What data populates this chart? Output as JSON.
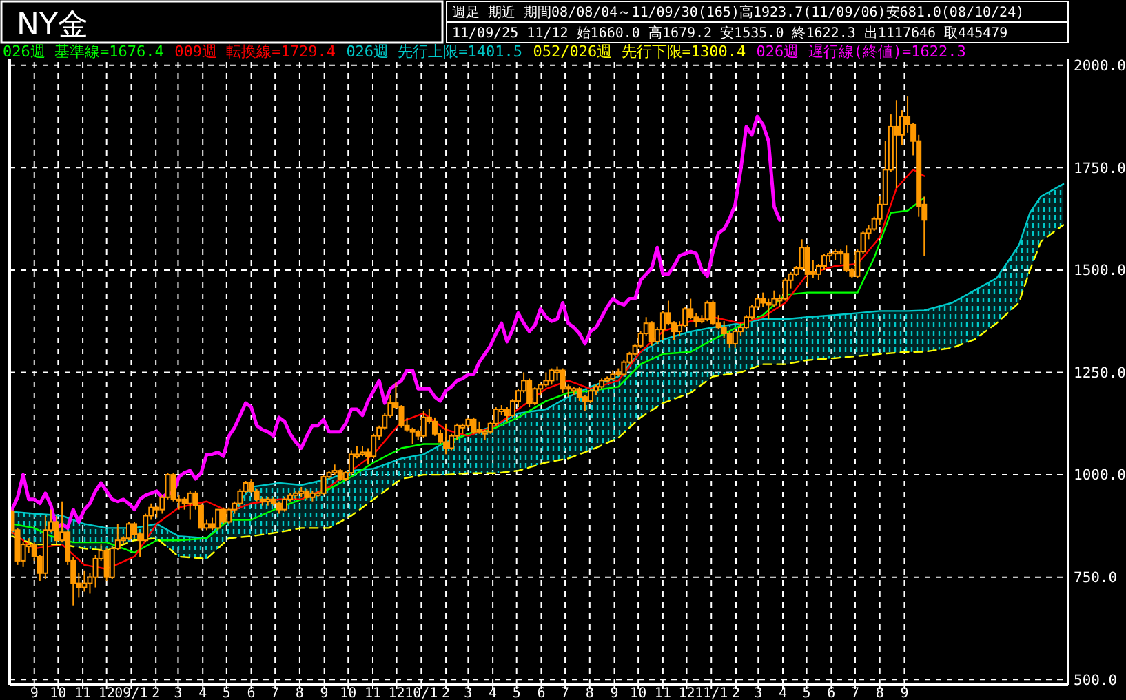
{
  "chart_data": {
    "type": "candlestick",
    "title": "NY金",
    "subtitle": "週足 期近 期間08/08/04～11/09/30(165)高1923.7(11/09/06)安681.0(08/10/24)",
    "annotations": [
      "11/09/25 11/12 始1660.0 高1679.2 安1535.0 終1622.3 出1117646 取445479"
    ],
    "color": "#ff9900",
    "grid": true,
    "legend": "top left",
    "xlim": [
      "2008-08-01",
      "2012-03-25"
    ],
    "xticks": [
      {
        "value": "2008-09-01",
        "label": "9"
      },
      {
        "value": "2008-10-01",
        "label": "10"
      },
      {
        "value": "2008-11-01",
        "label": "11"
      },
      {
        "value": "2008-12-01",
        "label": "12"
      },
      {
        "value": "2009-01-01",
        "label": "09/1"
      },
      {
        "value": "2009-02-01",
        "label": "2"
      },
      {
        "value": "2009-03-01",
        "label": "3"
      },
      {
        "value": "2009-04-01",
        "label": "4"
      },
      {
        "value": "2009-05-01",
        "label": "5"
      },
      {
        "value": "2009-06-01",
        "label": "6"
      },
      {
        "value": "2009-07-01",
        "label": "7"
      },
      {
        "value": "2009-08-01",
        "label": "8"
      },
      {
        "value": "2009-09-01",
        "label": "9"
      },
      {
        "value": "2009-10-01",
        "label": "10"
      },
      {
        "value": "2009-11-01",
        "label": "11"
      },
      {
        "value": "2009-12-01",
        "label": "12"
      },
      {
        "value": "2010-01-01",
        "label": "10/1"
      },
      {
        "value": "2010-02-01",
        "label": "2"
      },
      {
        "value": "2010-03-01",
        "label": "3"
      },
      {
        "value": "2010-04-01",
        "label": "4"
      },
      {
        "value": "2010-05-01",
        "label": "5"
      },
      {
        "value": "2010-06-01",
        "label": "6"
      },
      {
        "value": "2010-07-01",
        "label": "7"
      },
      {
        "value": "2010-08-01",
        "label": "8"
      },
      {
        "value": "2010-09-01",
        "label": "9"
      },
      {
        "value": "2010-10-01",
        "label": "10"
      },
      {
        "value": "2010-11-01",
        "label": "11"
      },
      {
        "value": "2010-12-01",
        "label": "12"
      },
      {
        "value": "2011-01-01",
        "label": "11/1"
      },
      {
        "value": "2011-02-01",
        "label": "2"
      },
      {
        "value": "2011-03-01",
        "label": "3"
      },
      {
        "value": "2011-04-01",
        "label": "4"
      },
      {
        "value": "2011-05-01",
        "label": "5"
      },
      {
        "value": "2011-06-01",
        "label": "6"
      },
      {
        "value": "2011-07-01",
        "label": "7"
      },
      {
        "value": "2011-08-01",
        "label": "8"
      },
      {
        "value": "2011-09-01",
        "label": "9"
      }
    ],
    "ylim": [
      487,
      2008
    ],
    "yticks": [
      {
        "value": 500,
        "label": "500.0"
      },
      {
        "value": 750,
        "label": "750.0"
      },
      {
        "value": 1000,
        "label": "1000.0"
      },
      {
        "value": 1250,
        "label": "1250.0"
      },
      {
        "value": 1500,
        "label": "1500.0"
      },
      {
        "value": 1750,
        "label": "1750.0"
      },
      {
        "value": 2000,
        "label": "2000.0"
      }
    ],
    "x": [
      "2008-08-04",
      "2008-08-11",
      "2008-08-18",
      "2008-08-25",
      "2008-09-01",
      "2008-09-08",
      "2008-09-15",
      "2008-09-22",
      "2008-09-29",
      "2008-10-06",
      "2008-10-13",
      "2008-10-20",
      "2008-10-27",
      "2008-11-03",
      "2008-11-10",
      "2008-11-17",
      "2008-11-24",
      "2008-12-01",
      "2008-12-08",
      "2008-12-15",
      "2008-12-22",
      "2008-12-29",
      "2009-01-05",
      "2009-01-12",
      "2009-01-19",
      "2009-01-26",
      "2009-02-02",
      "2009-02-09",
      "2009-02-16",
      "2009-02-23",
      "2009-03-02",
      "2009-03-09",
      "2009-03-16",
      "2009-03-23",
      "2009-03-30",
      "2009-04-06",
      "2009-04-13",
      "2009-04-20",
      "2009-04-27",
      "2009-05-04",
      "2009-05-11",
      "2009-05-18",
      "2009-05-25",
      "2009-06-01",
      "2009-06-08",
      "2009-06-15",
      "2009-06-22",
      "2009-06-29",
      "2009-07-06",
      "2009-07-13",
      "2009-07-20",
      "2009-07-27",
      "2009-08-03",
      "2009-08-10",
      "2009-08-17",
      "2009-08-24",
      "2009-08-31",
      "2009-09-07",
      "2009-09-14",
      "2009-09-21",
      "2009-09-28",
      "2009-10-05",
      "2009-10-12",
      "2009-10-19",
      "2009-10-26",
      "2009-11-02",
      "2009-11-09",
      "2009-11-16",
      "2009-11-23",
      "2009-11-30",
      "2009-12-07",
      "2009-12-14",
      "2009-12-21",
      "2009-12-28",
      "2010-01-04",
      "2010-01-11",
      "2010-01-18",
      "2010-01-25",
      "2010-02-01",
      "2010-02-08",
      "2010-02-15",
      "2010-02-22",
      "2010-03-01",
      "2010-03-08",
      "2010-03-15",
      "2010-03-22",
      "2010-03-29",
      "2010-04-05",
      "2010-04-12",
      "2010-04-19",
      "2010-04-26",
      "2010-05-03",
      "2010-05-10",
      "2010-05-17",
      "2010-05-24",
      "2010-05-31",
      "2010-06-07",
      "2010-06-14",
      "2010-06-21",
      "2010-06-28",
      "2010-07-05",
      "2010-07-12",
      "2010-07-19",
      "2010-07-26",
      "2010-08-02",
      "2010-08-09",
      "2010-08-16",
      "2010-08-23",
      "2010-08-30",
      "2010-09-06",
      "2010-09-13",
      "2010-09-20",
      "2010-09-27",
      "2010-10-04",
      "2010-10-11",
      "2010-10-18",
      "2010-10-25",
      "2010-11-01",
      "2010-11-08",
      "2010-11-15",
      "2010-11-22",
      "2010-11-29",
      "2010-12-06",
      "2010-12-13",
      "2010-12-20",
      "2010-12-27",
      "2011-01-03",
      "2011-01-10",
      "2011-01-17",
      "2011-01-24",
      "2011-01-31",
      "2011-02-07",
      "2011-02-14",
      "2011-02-21",
      "2011-02-28",
      "2011-03-07",
      "2011-03-14",
      "2011-03-21",
      "2011-03-28",
      "2011-04-04",
      "2011-04-11",
      "2011-04-18",
      "2011-04-25",
      "2011-05-02",
      "2011-05-09",
      "2011-05-16",
      "2011-05-23",
      "2011-05-30",
      "2011-06-06",
      "2011-06-13",
      "2011-06-20",
      "2011-06-27",
      "2011-07-04",
      "2011-07-11",
      "2011-07-18",
      "2011-07-25",
      "2011-08-01",
      "2011-08-08",
      "2011-08-15",
      "2011-08-22",
      "2011-08-29",
      "2011-09-05",
      "2011-09-12",
      "2011-09-19",
      "2011-09-26"
    ],
    "ohlc": [
      [
        910,
        915,
        855,
        865
      ],
      [
        865,
        870,
        780,
        790
      ],
      [
        790,
        835,
        775,
        830
      ],
      [
        825,
        845,
        810,
        830
      ],
      [
        830,
        835,
        790,
        800
      ],
      [
        800,
        805,
        740,
        760
      ],
      [
        760,
        900,
        745,
        865
      ],
      [
        865,
        915,
        860,
        885
      ],
      [
        885,
        900,
        830,
        840
      ],
      [
        840,
        935,
        835,
        860
      ],
      [
        860,
        865,
        780,
        790
      ],
      [
        790,
        800,
        681,
        735
      ],
      [
        735,
        760,
        700,
        725
      ],
      [
        725,
        765,
        715,
        735
      ],
      [
        735,
        760,
        710,
        750
      ],
      [
        750,
        805,
        725,
        795
      ],
      [
        795,
        830,
        790,
        815
      ],
      [
        815,
        820,
        740,
        750
      ],
      [
        750,
        825,
        745,
        820
      ],
      [
        820,
        880,
        815,
        840
      ],
      [
        840,
        850,
        830,
        845
      ],
      [
        845,
        885,
        840,
        880
      ],
      [
        880,
        885,
        845,
        855
      ],
      [
        855,
        860,
        800,
        840
      ],
      [
        840,
        905,
        835,
        900
      ],
      [
        900,
        930,
        890,
        920
      ],
      [
        920,
        925,
        895,
        915
      ],
      [
        915,
        950,
        905,
        945
      ],
      [
        945,
        1005,
        940,
        1000
      ],
      [
        1000,
        1005,
        935,
        940
      ],
      [
        940,
        950,
        915,
        940
      ],
      [
        940,
        945,
        915,
        930
      ],
      [
        930,
        960,
        890,
        955
      ],
      [
        955,
        960,
        915,
        925
      ],
      [
        925,
        930,
        865,
        870
      ],
      [
        870,
        890,
        865,
        880
      ],
      [
        880,
        895,
        865,
        870
      ],
      [
        870,
        915,
        865,
        915
      ],
      [
        915,
        920,
        880,
        885
      ],
      [
        885,
        920,
        880,
        915
      ],
      [
        915,
        935,
        905,
        930
      ],
      [
        930,
        965,
        925,
        960
      ],
      [
        960,
        985,
        955,
        980
      ],
      [
        980,
        990,
        955,
        960
      ],
      [
        960,
        965,
        935,
        940
      ],
      [
        940,
        945,
        925,
        935
      ],
      [
        935,
        945,
        925,
        940
      ],
      [
        940,
        945,
        925,
        930
      ],
      [
        930,
        935,
        905,
        915
      ],
      [
        915,
        945,
        910,
        940
      ],
      [
        940,
        955,
        935,
        950
      ],
      [
        950,
        960,
        940,
        955
      ],
      [
        955,
        970,
        945,
        960
      ],
      [
        960,
        965,
        940,
        945
      ],
      [
        945,
        960,
        935,
        955
      ],
      [
        950,
        960,
        945,
        955
      ],
      [
        955,
        1000,
        950,
        995
      ],
      [
        995,
        1010,
        990,
        1005
      ],
      [
        1005,
        1025,
        1000,
        1010
      ],
      [
        1010,
        1015,
        985,
        990
      ],
      [
        990,
        1010,
        985,
        1005
      ],
      [
        1005,
        1060,
        1000,
        1050
      ],
      [
        1045,
        1070,
        1040,
        1050
      ],
      [
        1050,
        1070,
        1045,
        1055
      ],
      [
        1055,
        1065,
        1025,
        1045
      ],
      [
        1045,
        1100,
        1040,
        1095
      ],
      [
        1095,
        1120,
        1085,
        1115
      ],
      [
        1115,
        1150,
        1110,
        1145
      ],
      [
        1145,
        1195,
        1140,
        1175
      ],
      [
        1175,
        1225,
        1160,
        1165
      ],
      [
        1165,
        1170,
        1115,
        1120
      ],
      [
        1120,
        1140,
        1105,
        1110
      ],
      [
        1110,
        1115,
        1075,
        1105
      ],
      [
        1105,
        1110,
        1085,
        1095
      ],
      [
        1095,
        1155,
        1090,
        1140
      ],
      [
        1140,
        1160,
        1125,
        1130
      ],
      [
        1130,
        1140,
        1095,
        1100
      ],
      [
        1100,
        1110,
        1075,
        1080
      ],
      [
        1080,
        1125,
        1050,
        1065
      ],
      [
        1065,
        1100,
        1060,
        1095
      ],
      [
        1095,
        1125,
        1085,
        1120
      ],
      [
        1115,
        1125,
        1100,
        1120
      ],
      [
        1120,
        1140,
        1115,
        1135
      ],
      [
        1135,
        1140,
        1100,
        1105
      ],
      [
        1110,
        1130,
        1100,
        1105
      ],
      [
        1100,
        1110,
        1085,
        1105
      ],
      [
        1105,
        1130,
        1100,
        1125
      ],
      [
        1125,
        1165,
        1120,
        1160
      ],
      [
        1155,
        1170,
        1145,
        1160
      ],
      [
        1160,
        1165,
        1130,
        1145
      ],
      [
        1145,
        1185,
        1140,
        1180
      ],
      [
        1180,
        1210,
        1165,
        1205
      ],
      [
        1205,
        1250,
        1200,
        1230
      ],
      [
        1230,
        1235,
        1165,
        1175
      ],
      [
        1175,
        1215,
        1170,
        1210
      ],
      [
        1210,
        1225,
        1195,
        1220
      ],
      [
        1220,
        1250,
        1215,
        1230
      ],
      [
        1230,
        1260,
        1220,
        1255
      ],
      [
        1250,
        1265,
        1230,
        1255
      ],
      [
        1255,
        1260,
        1200,
        1210
      ],
      [
        1215,
        1220,
        1190,
        1210
      ],
      [
        1205,
        1215,
        1195,
        1210
      ],
      [
        1210,
        1215,
        1180,
        1190
      ],
      [
        1190,
        1195,
        1155,
        1180
      ],
      [
        1180,
        1210,
        1175,
        1205
      ],
      [
        1205,
        1220,
        1195,
        1215
      ],
      [
        1215,
        1235,
        1210,
        1230
      ],
      [
        1230,
        1240,
        1225,
        1235
      ],
      [
        1235,
        1255,
        1230,
        1245
      ],
      [
        1250,
        1260,
        1240,
        1245
      ],
      [
        1245,
        1280,
        1240,
        1275
      ],
      [
        1275,
        1300,
        1270,
        1295
      ],
      [
        1295,
        1320,
        1290,
        1315
      ],
      [
        1315,
        1350,
        1310,
        1345
      ],
      [
        1345,
        1385,
        1340,
        1370
      ],
      [
        1370,
        1375,
        1315,
        1325
      ],
      [
        1325,
        1360,
        1320,
        1355
      ],
      [
        1355,
        1400,
        1330,
        1395
      ],
      [
        1395,
        1425,
        1365,
        1370
      ],
      [
        1370,
        1375,
        1330,
        1350
      ],
      [
        1350,
        1375,
        1340,
        1365
      ],
      [
        1365,
        1410,
        1360,
        1405
      ],
      [
        1405,
        1430,
        1380,
        1385
      ],
      [
        1385,
        1395,
        1360,
        1375
      ],
      [
        1375,
        1390,
        1370,
        1380
      ],
      [
        1380,
        1425,
        1375,
        1420
      ],
      [
        1420,
        1425,
        1365,
        1370
      ],
      [
        1370,
        1390,
        1355,
        1360
      ],
      [
        1360,
        1375,
        1335,
        1345
      ],
      [
        1345,
        1350,
        1310,
        1320
      ],
      [
        1320,
        1355,
        1310,
        1350
      ],
      [
        1350,
        1370,
        1340,
        1360
      ],
      [
        1360,
        1390,
        1355,
        1385
      ],
      [
        1385,
        1415,
        1380,
        1410
      ],
      [
        1410,
        1440,
        1405,
        1430
      ],
      [
        1430,
        1445,
        1410,
        1420
      ],
      [
        1420,
        1430,
        1380,
        1415
      ],
      [
        1415,
        1450,
        1410,
        1430
      ],
      [
        1425,
        1440,
        1410,
        1430
      ],
      [
        1430,
        1480,
        1425,
        1475
      ],
      [
        1475,
        1495,
        1455,
        1490
      ],
      [
        1490,
        1510,
        1485,
        1505
      ],
      [
        1505,
        1575,
        1500,
        1555
      ],
      [
        1555,
        1560,
        1460,
        1490
      ],
      [
        1495,
        1525,
        1480,
        1490
      ],
      [
        1490,
        1515,
        1475,
        1510
      ],
      [
        1510,
        1540,
        1500,
        1535
      ],
      [
        1535,
        1545,
        1520,
        1540
      ],
      [
        1540,
        1550,
        1525,
        1545
      ],
      [
        1545,
        1550,
        1515,
        1540
      ],
      [
        1540,
        1560,
        1495,
        1500
      ],
      [
        1500,
        1505,
        1480,
        1485
      ],
      [
        1485,
        1550,
        1480,
        1545
      ],
      [
        1545,
        1595,
        1540,
        1590
      ],
      [
        1590,
        1610,
        1575,
        1600
      ],
      [
        1600,
        1630,
        1595,
        1625
      ],
      [
        1625,
        1680,
        1610,
        1660
      ],
      [
        1660,
        1815,
        1660,
        1745
      ],
      [
        1745,
        1880,
        1740,
        1850
      ],
      [
        1850,
        1915,
        1700,
        1830
      ],
      [
        1830,
        1890,
        1805,
        1875
      ],
      [
        1875,
        1923.7,
        1835,
        1855
      ],
      [
        1855,
        1860,
        1780,
        1815
      ],
      [
        1815,
        1830,
        1630,
        1655
      ],
      [
        1660,
        1679.2,
        1535,
        1622.3
      ]
    ],
    "series": [
      {
        "type": "line",
        "name": "026週 基準線=1676.4",
        "color": "#00ff00",
        "x": [
          "2008-08-04",
          "2008-09-01",
          "2008-09-22",
          "2008-10-20",
          "2008-12-01",
          "2009-01-05",
          "2009-02-02",
          "2009-03-02",
          "2009-04-06",
          "2009-05-04",
          "2009-06-01",
          "2009-07-06",
          "2009-08-03",
          "2009-09-07",
          "2009-10-05",
          "2009-11-02",
          "2009-12-07",
          "2010-01-04",
          "2010-02-01",
          "2010-03-01",
          "2010-04-05",
          "2010-05-03",
          "2010-06-07",
          "2010-07-05",
          "2010-08-02",
          "2010-09-06",
          "2010-10-04",
          "2010-11-01",
          "2010-12-06",
          "2011-01-03",
          "2011-02-07",
          "2011-03-07",
          "2011-04-04",
          "2011-05-02",
          "2011-06-06",
          "2011-07-04",
          "2011-07-25",
          "2011-08-15",
          "2011-09-05",
          "2011-09-26"
        ],
        "values": [
          880,
          870,
          850,
          835,
          835,
          810,
          840,
          840,
          845,
          890,
          890,
          920,
          940,
          965,
          995,
          1030,
          1065,
          1075,
          1075,
          1100,
          1115,
          1140,
          1180,
          1200,
          1205,
          1215,
          1270,
          1295,
          1300,
          1330,
          1365,
          1390,
          1440,
          1445,
          1445,
          1445,
          1530,
          1640,
          1645,
          1676.4
        ]
      },
      {
        "type": "line",
        "name": "009週 転換線=1729.4",
        "color": "#ff0000",
        "x": [
          "2008-08-04",
          "2008-09-01",
          "2008-10-06",
          "2008-11-03",
          "2008-12-01",
          "2009-01-05",
          "2009-02-02",
          "2009-03-02",
          "2009-04-06",
          "2009-05-04",
          "2009-06-01",
          "2009-07-06",
          "2009-08-03",
          "2009-09-07",
          "2009-10-05",
          "2009-11-02",
          "2009-12-07",
          "2010-01-04",
          "2010-02-01",
          "2010-03-01",
          "2010-04-05",
          "2010-05-03",
          "2010-06-07",
          "2010-07-05",
          "2010-08-02",
          "2010-09-06",
          "2010-10-04",
          "2010-11-01",
          "2010-12-06",
          "2011-01-03",
          "2011-02-07",
          "2011-03-07",
          "2011-04-04",
          "2011-05-02",
          "2011-06-06",
          "2011-07-04",
          "2011-08-01",
          "2011-08-22",
          "2011-09-12",
          "2011-09-26"
        ],
        "values": [
          860,
          820,
          830,
          780,
          770,
          800,
          880,
          920,
          935,
          910,
          930,
          940,
          940,
          970,
          1010,
          1050,
          1130,
          1150,
          1110,
          1095,
          1120,
          1160,
          1210,
          1230,
          1210,
          1230,
          1300,
          1350,
          1375,
          1385,
          1370,
          1385,
          1420,
          1490,
          1510,
          1515,
          1580,
          1700,
          1745,
          1729.4
        ]
      },
      {
        "type": "line",
        "name": "026週 先行上限=1401.5",
        "color": "#00c8c8",
        "x": [
          "2008-08-04",
          "2008-09-01",
          "2008-10-06",
          "2008-11-03",
          "2008-12-01",
          "2009-01-05",
          "2009-02-02",
          "2009-03-02",
          "2009-04-06",
          "2009-05-04",
          "2009-06-01",
          "2009-07-06",
          "2009-08-03",
          "2009-09-07",
          "2009-10-05",
          "2009-11-02",
          "2009-12-07",
          "2010-01-04",
          "2010-02-01",
          "2010-03-01",
          "2010-04-05",
          "2010-05-03",
          "2010-06-07",
          "2010-07-05",
          "2010-08-02",
          "2010-09-06",
          "2010-10-04",
          "2010-11-01",
          "2010-12-06",
          "2011-01-03",
          "2011-02-07",
          "2011-03-07",
          "2011-04-04",
          "2011-05-02",
          "2011-06-06",
          "2011-07-04",
          "2011-08-01",
          "2011-09-05",
          "2011-09-26",
          "2011-10-31",
          "2011-11-28",
          "2011-12-26",
          "2012-01-23",
          "2012-02-06",
          "2012-02-20",
          "2012-03-19"
        ],
        "values": [
          910,
          905,
          900,
          880,
          870,
          870,
          880,
          850,
          845,
          900,
          970,
          980,
          975,
          990,
          1010,
          1015,
          1040,
          1050,
          1080,
          1100,
          1120,
          1150,
          1160,
          1190,
          1215,
          1240,
          1300,
          1330,
          1350,
          1360,
          1370,
          1380,
          1380,
          1385,
          1390,
          1395,
          1400,
          1400,
          1401.5,
          1420,
          1450,
          1480,
          1560,
          1640,
          1680,
          1710
        ],
        "upper": [
          910,
          905,
          900,
          880,
          870,
          870,
          880,
          850,
          845,
          900,
          970,
          980,
          975,
          990,
          1010,
          1015,
          1040,
          1050,
          1080,
          1100,
          1120,
          1150,
          1160,
          1190,
          1215,
          1240,
          1300,
          1330,
          1350,
          1360,
          1370,
          1380,
          1380,
          1385,
          1390,
          1395,
          1400,
          1400,
          1401.5,
          1420,
          1450,
          1480,
          1560,
          1640,
          1680,
          1710
        ],
        "lower": [
          850,
          830,
          830,
          820,
          815,
          840,
          845,
          800,
          795,
          845,
          850,
          860,
          870,
          870,
          900,
          940,
          990,
          1000,
          1000,
          1004,
          1004,
          1010,
          1030,
          1040,
          1060,
          1090,
          1140,
          1175,
          1200,
          1240,
          1250,
          1270,
          1270,
          1280,
          1285,
          1290,
          1295,
          1300,
          1300.4,
          1310,
          1330,
          1370,
          1420,
          1500,
          1570,
          1610
        ]
      },
      {
        "type": "line",
        "name": "052/026週 先行下限=1300.4",
        "color": "#ffff00",
        "line_style": "dashed",
        "x": [
          "2008-08-04",
          "2008-09-01",
          "2008-10-06",
          "2008-11-03",
          "2008-12-01",
          "2009-01-05",
          "2009-02-02",
          "2009-03-02",
          "2009-04-06",
          "2009-05-04",
          "2009-06-01",
          "2009-07-06",
          "2009-08-03",
          "2009-09-07",
          "2009-10-05",
          "2009-11-02",
          "2009-12-07",
          "2010-01-04",
          "2010-02-01",
          "2010-03-01",
          "2010-04-05",
          "2010-05-03",
          "2010-06-07",
          "2010-07-05",
          "2010-08-02",
          "2010-09-06",
          "2010-10-04",
          "2010-11-01",
          "2010-12-06",
          "2011-01-03",
          "2011-02-07",
          "2011-03-07",
          "2011-04-04",
          "2011-05-02",
          "2011-06-06",
          "2011-07-04",
          "2011-08-01",
          "2011-09-05",
          "2011-09-26",
          "2011-10-31",
          "2011-11-28",
          "2011-12-26",
          "2012-01-23",
          "2012-02-06",
          "2012-02-20",
          "2012-03-19"
        ],
        "values": [
          850,
          830,
          830,
          820,
          815,
          840,
          845,
          800,
          795,
          845,
          850,
          860,
          870,
          870,
          900,
          940,
          990,
          1000,
          1000,
          1004,
          1004,
          1010,
          1030,
          1040,
          1060,
          1090,
          1140,
          1175,
          1200,
          1240,
          1250,
          1270,
          1270,
          1280,
          1285,
          1290,
          1295,
          1300,
          1300.4,
          1310,
          1330,
          1370,
          1420,
          1500,
          1570,
          1610
        ]
      },
      {
        "type": "line",
        "name": "026週 遅行線(終値)=1622.3",
        "color": "#ff00ff",
        "x": [
          "2008-08-04",
          "2008-08-11",
          "2008-08-18",
          "2008-08-25",
          "2008-09-01",
          "2008-09-08",
          "2008-09-15",
          "2008-09-22",
          "2008-09-29",
          "2008-10-06",
          "2008-10-13",
          "2008-10-20",
          "2008-10-27",
          "2008-11-03",
          "2008-11-10",
          "2008-11-17",
          "2008-11-24",
          "2008-12-01",
          "2008-12-08",
          "2008-12-15",
          "2008-12-22",
          "2008-12-29",
          "2009-01-05",
          "2009-01-12",
          "2009-01-19",
          "2009-01-26",
          "2009-02-02",
          "2009-02-09",
          "2009-02-16",
          "2009-02-23",
          "2009-03-02",
          "2009-03-09",
          "2009-03-16",
          "2009-03-23",
          "2009-03-30",
          "2009-04-06",
          "2009-04-13",
          "2009-04-20",
          "2009-04-27",
          "2009-05-04",
          "2009-05-11",
          "2009-05-18",
          "2009-05-25",
          "2009-06-01",
          "2009-06-08",
          "2009-06-15",
          "2009-06-22",
          "2009-06-29",
          "2009-07-06",
          "2009-07-13",
          "2009-07-20",
          "2009-07-27",
          "2009-08-03",
          "2009-08-10",
          "2009-08-17",
          "2009-08-24",
          "2009-08-31",
          "2009-09-07",
          "2009-09-14",
          "2009-09-21",
          "2009-09-28",
          "2009-10-05",
          "2009-10-12",
          "2009-10-19",
          "2009-10-26",
          "2009-11-02",
          "2009-11-09",
          "2009-11-16",
          "2009-11-23",
          "2009-11-30",
          "2009-12-07",
          "2009-12-14",
          "2009-12-21",
          "2009-12-28",
          "2010-01-04",
          "2010-01-11",
          "2010-01-18",
          "2010-01-25",
          "2010-02-01",
          "2010-02-08",
          "2010-02-15",
          "2010-02-22",
          "2010-03-01",
          "2010-03-08",
          "2010-03-15",
          "2010-03-22",
          "2010-03-29",
          "2010-04-05",
          "2010-04-12",
          "2010-04-19",
          "2010-04-26",
          "2010-05-03",
          "2010-05-10",
          "2010-05-17",
          "2010-05-24",
          "2010-05-31",
          "2010-06-07",
          "2010-06-14",
          "2010-06-21",
          "2010-06-28",
          "2010-07-05",
          "2010-07-12",
          "2010-07-19",
          "2010-07-26",
          "2010-08-02",
          "2010-08-09",
          "2010-08-16",
          "2010-08-23",
          "2010-08-30",
          "2010-09-06",
          "2010-09-13",
          "2010-09-20",
          "2010-09-27",
          "2010-10-04",
          "2010-10-11",
          "2010-10-18",
          "2010-10-25",
          "2010-11-01",
          "2010-11-08",
          "2010-11-15",
          "2010-11-22",
          "2010-11-29",
          "2010-12-06",
          "2010-12-13",
          "2010-12-20",
          "2010-12-27",
          "2011-01-03",
          "2011-01-10",
          "2011-01-17",
          "2011-01-24",
          "2011-01-31",
          "2011-02-07",
          "2011-02-14",
          "2011-02-21",
          "2011-02-28",
          "2011-03-07",
          "2011-03-14",
          "2011-03-21",
          "2011-03-28"
        ],
        "values": [
          915,
          945,
          1000,
          940,
          940,
          930,
          955,
          925,
          870,
          880,
          870,
          915,
          885,
          915,
          930,
          960,
          980,
          960,
          940,
          935,
          940,
          930,
          915,
          940,
          950,
          955,
          960,
          945,
          955,
          955,
          995,
          1005,
          1010,
          990,
          1005,
          1050,
          1050,
          1055,
          1045,
          1095,
          1115,
          1145,
          1175,
          1165,
          1120,
          1110,
          1105,
          1095,
          1140,
          1130,
          1100,
          1080,
          1065,
          1095,
          1120,
          1120,
          1135,
          1105,
          1105,
          1105,
          1125,
          1160,
          1160,
          1145,
          1180,
          1205,
          1230,
          1175,
          1210,
          1220,
          1230,
          1255,
          1255,
          1210,
          1210,
          1210,
          1190,
          1180,
          1205,
          1215,
          1230,
          1235,
          1245,
          1245,
          1275,
          1295,
          1315,
          1345,
          1370,
          1325,
          1355,
          1395,
          1370,
          1350,
          1365,
          1405,
          1385,
          1375,
          1380,
          1420,
          1370,
          1360,
          1345,
          1320,
          1350,
          1360,
          1385,
          1410,
          1430,
          1420,
          1415,
          1430,
          1430,
          1475,
          1490,
          1505,
          1555,
          1490,
          1490,
          1510,
          1535,
          1540,
          1545,
          1540,
          1500,
          1485,
          1545,
          1590,
          1600,
          1625,
          1660,
          1745,
          1850,
          1830,
          1875,
          1855,
          1815,
          1655,
          1622.3
        ]
      }
    ]
  }
}
